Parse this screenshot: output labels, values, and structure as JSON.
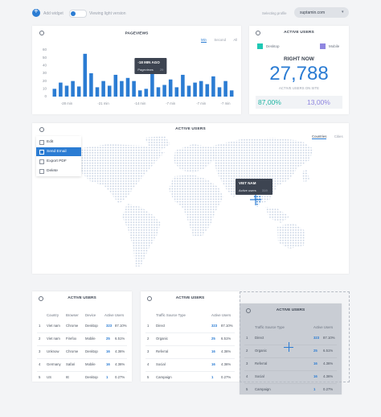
{
  "toolbar": {
    "add_widget": "Add widget",
    "view_mode": "Viewing light version",
    "profile_label": "Selecting profile",
    "profile": "suptamin.com"
  },
  "pageviews_tabs": [
    "Min",
    "Second",
    "All"
  ],
  "chart_data": {
    "type": "bar",
    "title": "PAGEVIEWS",
    "categories": [
      null,
      null,
      "-28 min",
      null,
      null,
      null,
      null,
      null,
      "-21 min",
      null,
      null,
      null,
      null,
      null,
      "-14 min",
      null,
      null,
      null,
      null,
      "-7 min",
      null,
      null,
      null,
      null,
      "-7 min",
      null,
      null,
      null,
      "-7 min",
      null
    ],
    "values": [
      10,
      18,
      14,
      20,
      13,
      55,
      30,
      12,
      20,
      14,
      28,
      20,
      24,
      20,
      8,
      10,
      29,
      12,
      15,
      22,
      12,
      28,
      14,
      18,
      20,
      16,
      26,
      12,
      20,
      8
    ],
    "color": "#2b7cd3",
    "ylim": [
      0,
      60
    ],
    "yticks": [
      0,
      10,
      20,
      30,
      40,
      50,
      60
    ],
    "grid": false,
    "annotation": {
      "title": "-18 MIN AGO",
      "label": "Pageviews",
      "value": 29
    }
  },
  "active_now": {
    "title": "ACTIVE USERS",
    "legend": [
      {
        "name": "Desktop",
        "color": "#1fc8b4"
      },
      {
        "name": "Mobile",
        "color": "#8f86e0"
      }
    ],
    "heading": "RIGHT NOW",
    "count": "27,788",
    "caption": "ACTIVE USERS ON SITE",
    "shares": [
      "87,00%",
      "13,00%"
    ]
  },
  "map_card": {
    "title": "ACTIVE USERS",
    "tabs": [
      "Countries",
      "Cities"
    ],
    "menu": [
      "Edit",
      "Send Email",
      "Export PDF",
      "Delete"
    ],
    "tooltip": {
      "title": "VIET NAM",
      "label": "Active users",
      "value": "319"
    }
  },
  "tables": [
    {
      "title": "ACTIVE USERS",
      "columns": [
        "Country",
        "Browser",
        "Device",
        "Active Users"
      ],
      "rows": [
        [
          "1",
          "Viet nam",
          "Chrome",
          "Desktop",
          "323",
          "87.10%"
        ],
        [
          "2",
          "Viet nam",
          "Firefox",
          "Mobile",
          "25",
          "6.51%"
        ],
        [
          "3",
          "Unknow",
          "Chrome",
          "Desktop",
          "16",
          "4.36%"
        ],
        [
          "4",
          "Germany",
          "Safari",
          "Mobile",
          "16",
          "4.36%"
        ],
        [
          "5",
          "US",
          "IE",
          "Desktop",
          "1",
          "0.27%"
        ]
      ]
    },
    {
      "title": "ACTIVE USERS",
      "columns": [
        "Traffic Source Type",
        "Active Users"
      ],
      "rows": [
        [
          "1",
          "Direct",
          "323",
          "87.10%"
        ],
        [
          "2",
          "Organic",
          "25",
          "6.51%"
        ],
        [
          "3",
          "Referral",
          "16",
          "4.36%"
        ],
        [
          "4",
          "Social",
          "16",
          "4.36%"
        ],
        [
          "5",
          "Campaign",
          "1",
          "0.27%"
        ]
      ]
    },
    {
      "title": "ACTIVE USERS",
      "columns": [
        "Traffic Source Type",
        "Active Users"
      ],
      "rows": [
        [
          "1",
          "Direct",
          "323",
          "87.10%"
        ],
        [
          "2",
          "Organic",
          "25",
          "6.51%"
        ],
        [
          "3",
          "Referral",
          "16",
          "4.36%"
        ],
        [
          "4",
          "Social",
          "16",
          "4.36%"
        ],
        [
          "5",
          "Campaign",
          "1",
          "0.27%"
        ]
      ]
    }
  ]
}
